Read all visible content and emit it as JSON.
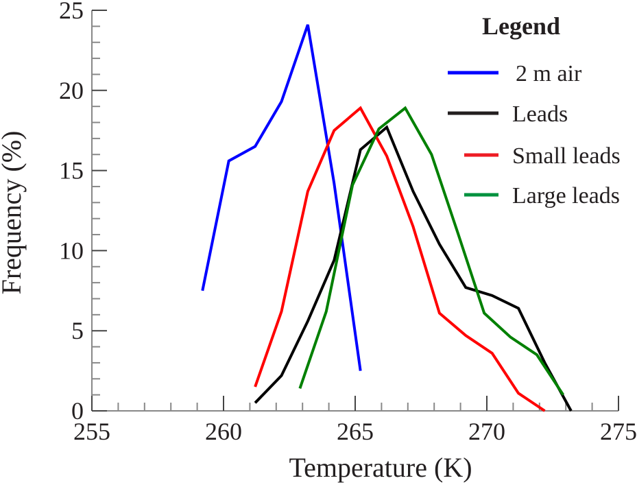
{
  "chart_data": {
    "type": "line",
    "title": "",
    "xlabel": "Temperature (K)",
    "ylabel": "Frequency (%)",
    "xlim": [
      255,
      275
    ],
    "ylim": [
      0,
      25
    ],
    "xticks": [
      255,
      260,
      265,
      270,
      275
    ],
    "yticks": [
      0,
      5,
      10,
      15,
      20,
      25
    ],
    "grid": false,
    "legend": {
      "title": "Legend",
      "placement": "top-right"
    },
    "series": [
      {
        "name": "2 m air",
        "color": "#0000ff",
        "x": [
          259.2,
          260.2,
          261.2,
          262.2,
          263.2,
          264.2,
          265.2
        ],
        "y": [
          7.5,
          15.6,
          16.5,
          19.3,
          24.1,
          14.2,
          2.5
        ]
      },
      {
        "name": "Leads",
        "color": "#000000",
        "x": [
          261.2,
          262.2,
          263.2,
          264.2,
          265.2,
          266.2,
          267.2,
          268.2,
          269.2,
          270.2,
          271.2,
          272.2,
          273.2
        ],
        "y": [
          0.5,
          2.2,
          5.6,
          9.4,
          16.3,
          17.7,
          13.7,
          10.4,
          7.7,
          7.2,
          6.4,
          3.0,
          0.0
        ]
      },
      {
        "name": "Small leads",
        "color": "#ff0000",
        "x": [
          261.2,
          262.2,
          263.2,
          264.2,
          265.2,
          266.2,
          267.2,
          268.2,
          269.2,
          270.2,
          271.2,
          272.2
        ],
        "y": [
          1.5,
          6.2,
          13.7,
          17.5,
          18.9,
          15.9,
          11.5,
          6.1,
          4.7,
          3.6,
          1.1,
          0.0
        ]
      },
      {
        "name": "Large leads",
        "color": "#008000",
        "x": [
          262.9,
          263.9,
          264.9,
          265.9,
          266.9,
          267.9,
          268.9,
          269.9,
          270.9,
          271.9,
          272.9
        ],
        "y": [
          1.4,
          6.2,
          14.1,
          17.6,
          18.9,
          16.0,
          11.1,
          6.1,
          4.6,
          3.5,
          1.0
        ]
      }
    ],
    "legend_colors": [
      "#0000ff",
      "#231f20",
      "#ed1c24",
      "#00923f"
    ]
  }
}
